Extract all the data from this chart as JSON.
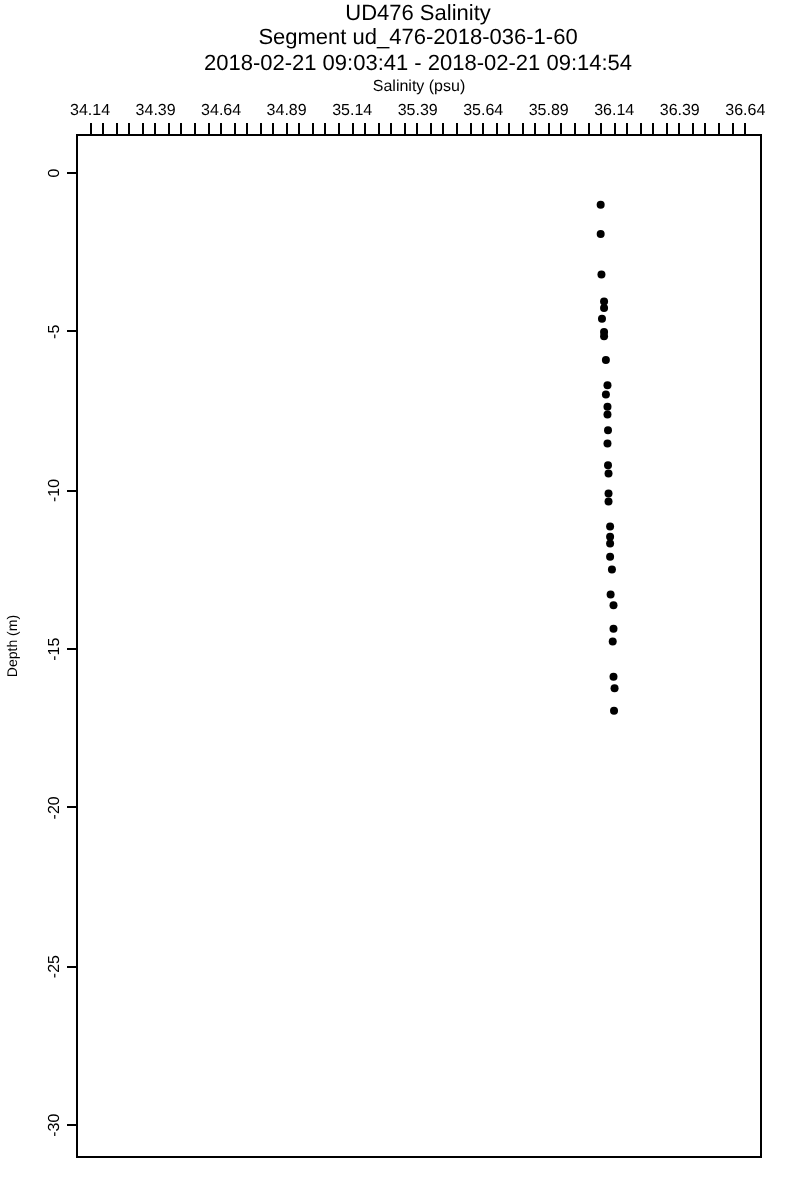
{
  "chart_data": {
    "type": "scatter",
    "title": "UD476 Salinity",
    "subtitle": [
      "Segment ud_476-2018-036-1-60",
      "2018-02-21 09:03:41 - 2018-02-21 09:14:54"
    ],
    "xlabel": "Salinity (psu)",
    "ylabel": "Depth (m)",
    "x": [
      36.092,
      36.092,
      36.095,
      36.105,
      36.105,
      36.097,
      36.105,
      36.105,
      36.112,
      36.118,
      36.112,
      36.118,
      36.118,
      36.12,
      36.118,
      36.12,
      36.122,
      36.122,
      36.122,
      36.128,
      36.128,
      36.128,
      36.128,
      36.135,
      36.13,
      36.141,
      36.141,
      36.138,
      36.141,
      36.145,
      36.143
    ],
    "series": [
      {
        "color": "#000000",
        "values": [
          -1.03,
          -1.95,
          -3.23,
          -4.08,
          -4.28,
          -4.62,
          -5.04,
          -5.17,
          -5.92,
          -6.72,
          -7.01,
          -7.39,
          -7.64,
          -8.13,
          -8.55,
          -9.24,
          -9.5,
          -10.13,
          -10.38,
          -11.17,
          -11.49,
          -11.7,
          -12.12,
          -12.52,
          -13.31,
          -13.65,
          -14.39,
          -14.79,
          -15.9,
          -16.26,
          -16.97
        ]
      }
    ],
    "marker": "circle",
    "xlim": [
      34.09,
      36.7
    ],
    "xticks": [
      34.14,
      {
        "value": 34.19,
        "label": null
      },
      {
        "value": 34.24,
        "label": null
      },
      {
        "value": 34.29,
        "label": null
      },
      {
        "value": 34.34,
        "label": null
      },
      34.39,
      {
        "value": 34.44,
        "label": null
      },
      {
        "value": 34.49,
        "label": null
      },
      {
        "value": 34.54,
        "label": null
      },
      {
        "value": 34.59,
        "label": null
      },
      34.64,
      {
        "value": 34.69,
        "label": null
      },
      {
        "value": 34.74,
        "label": null
      },
      {
        "value": 34.79,
        "label": null
      },
      {
        "value": 34.84,
        "label": null
      },
      34.89,
      {
        "value": 34.94,
        "label": null
      },
      {
        "value": 34.99,
        "label": null
      },
      {
        "value": 35.04,
        "label": null
      },
      {
        "value": 35.09,
        "label": null
      },
      35.14,
      {
        "value": 35.19,
        "label": null
      },
      {
        "value": 35.24,
        "label": null
      },
      {
        "value": 35.29,
        "label": null
      },
      {
        "value": 35.34,
        "label": null
      },
      35.39,
      {
        "value": 35.44,
        "label": null
      },
      {
        "value": 35.49,
        "label": null
      },
      {
        "value": 35.54,
        "label": null
      },
      {
        "value": 35.59,
        "label": null
      },
      35.64,
      {
        "value": 35.69,
        "label": null
      },
      {
        "value": 35.74,
        "label": null
      },
      {
        "value": 35.79,
        "label": null
      },
      {
        "value": 35.84,
        "label": null
      },
      35.89,
      {
        "value": 35.94,
        "label": null
      },
      {
        "value": 35.99,
        "label": null
      },
      {
        "value": 36.04,
        "label": null
      },
      {
        "value": 36.09,
        "label": null
      },
      36.14,
      {
        "value": 36.19,
        "label": null
      },
      {
        "value": 36.24,
        "label": null
      },
      {
        "value": 36.29,
        "label": null
      },
      {
        "value": 36.34,
        "label": null
      },
      36.39,
      {
        "value": 36.44,
        "label": null
      },
      {
        "value": 36.49,
        "label": null
      },
      {
        "value": 36.54,
        "label": null
      },
      {
        "value": 36.59,
        "label": null
      },
      36.64
    ],
    "ylim": [
      -31.0,
      1.2
    ],
    "yticks": [
      0,
      -5,
      -10,
      -15,
      -20,
      -25,
      -30
    ],
    "grid": false
  }
}
